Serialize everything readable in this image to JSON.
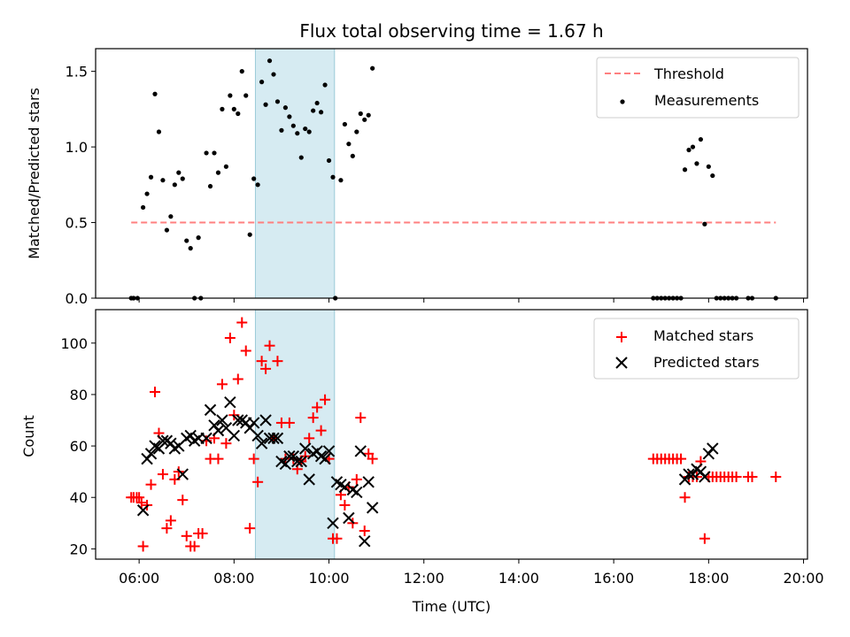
{
  "chart_data": [
    {
      "type": "scatter",
      "title": "Flux total observing time = 1.67 h",
      "xlabel": "",
      "ylabel": "Matched/Predicted stars",
      "xlim": [
        "05:05",
        "20:05"
      ],
      "ylim": [
        0,
        1.65
      ],
      "yticks": [
        "0.0",
        "0.5",
        "1.0",
        "1.5"
      ],
      "highlight_span": [
        "08:27",
        "10:07"
      ],
      "legend_position": "top-right",
      "threshold": {
        "name": "Threshold",
        "value": 0.5,
        "x": [
          "05:50",
          "19:25"
        ],
        "color": "#ff7f7f"
      },
      "series": [
        {
          "name": "Measurements",
          "color": "#000000",
          "points": [
            [
              "05:50",
              0
            ],
            [
              "05:53",
              0
            ],
            [
              "05:58",
              0
            ],
            [
              "06:05",
              0.6
            ],
            [
              "06:10",
              0.69
            ],
            [
              "06:15",
              0.8
            ],
            [
              "06:20",
              1.35
            ],
            [
              "06:25",
              1.1
            ],
            [
              "06:30",
              0.78
            ],
            [
              "06:35",
              0.45
            ],
            [
              "06:40",
              0.54
            ],
            [
              "06:45",
              0.75
            ],
            [
              "06:50",
              0.83
            ],
            [
              "06:55",
              0.79
            ],
            [
              "07:00",
              0.38
            ],
            [
              "07:05",
              0.33
            ],
            [
              "07:10",
              0
            ],
            [
              "07:15",
              0.4
            ],
            [
              "07:18",
              0
            ],
            [
              "07:25",
              0.96
            ],
            [
              "07:30",
              0.74
            ],
            [
              "07:35",
              0.96
            ],
            [
              "07:40",
              0.83
            ],
            [
              "07:45",
              1.25
            ],
            [
              "07:50",
              0.87
            ],
            [
              "07:55",
              1.34
            ],
            [
              "08:00",
              1.25
            ],
            [
              "08:05",
              1.22
            ],
            [
              "08:10",
              1.5
            ],
            [
              "08:15",
              1.34
            ],
            [
              "08:20",
              0.42
            ],
            [
              "08:25",
              0.79
            ],
            [
              "08:30",
              0.75
            ],
            [
              "08:35",
              1.43
            ],
            [
              "08:40",
              1.28
            ],
            [
              "08:45",
              1.57
            ],
            [
              "08:50",
              1.48
            ],
            [
              "08:55",
              1.3
            ],
            [
              "09:00",
              1.11
            ],
            [
              "09:05",
              1.26
            ],
            [
              "09:10",
              1.2
            ],
            [
              "09:15",
              1.14
            ],
            [
              "09:20",
              1.09
            ],
            [
              "09:25",
              0.93
            ],
            [
              "09:30",
              1.12
            ],
            [
              "09:35",
              1.1
            ],
            [
              "09:40",
              1.24
            ],
            [
              "09:45",
              1.29
            ],
            [
              "09:50",
              1.23
            ],
            [
              "09:55",
              1.41
            ],
            [
              "10:00",
              0.91
            ],
            [
              "10:05",
              0.8
            ],
            [
              "10:08",
              0
            ],
            [
              "10:15",
              0.78
            ],
            [
              "10:20",
              1.15
            ],
            [
              "10:25",
              1.02
            ],
            [
              "10:30",
              0.94
            ],
            [
              "10:35",
              1.1
            ],
            [
              "10:40",
              1.22
            ],
            [
              "10:45",
              1.18
            ],
            [
              "10:50",
              1.21
            ],
            [
              "10:55",
              1.52
            ],
            [
              "16:50",
              0
            ],
            [
              "16:55",
              0
            ],
            [
              "17:00",
              0
            ],
            [
              "17:05",
              0
            ],
            [
              "17:10",
              0
            ],
            [
              "17:15",
              0
            ],
            [
              "17:20",
              0
            ],
            [
              "17:25",
              0
            ],
            [
              "17:30",
              0.85
            ],
            [
              "17:35",
              0.98
            ],
            [
              "17:40",
              1.0
            ],
            [
              "17:45",
              0.89
            ],
            [
              "17:50",
              1.05
            ],
            [
              "17:55",
              0.49
            ],
            [
              "18:00",
              0.87
            ],
            [
              "18:05",
              0.81
            ],
            [
              "18:10",
              0
            ],
            [
              "18:15",
              0
            ],
            [
              "18:20",
              0
            ],
            [
              "18:25",
              0
            ],
            [
              "18:30",
              0
            ],
            [
              "18:35",
              0
            ],
            [
              "18:50",
              0
            ],
            [
              "18:55",
              0
            ],
            [
              "19:25",
              0
            ]
          ]
        }
      ]
    },
    {
      "type": "scatter",
      "title": "",
      "xlabel": "Time (UTC)",
      "ylabel": "Count",
      "xlim": [
        "05:05",
        "20:05"
      ],
      "ylim": [
        16,
        113
      ],
      "xticks": [
        "06:00",
        "08:00",
        "10:00",
        "12:00",
        "14:00",
        "16:00",
        "18:00",
        "20:00"
      ],
      "yticks": [
        20,
        40,
        60,
        80,
        100
      ],
      "highlight_span": [
        "08:27",
        "10:07"
      ],
      "legend_position": "top-right",
      "series": [
        {
          "name": "Matched stars",
          "marker": "plus",
          "color": "#ff0000",
          "points": [
            [
              "05:50",
              40
            ],
            [
              "05:53",
              40
            ],
            [
              "05:57",
              40
            ],
            [
              "06:00",
              40
            ],
            [
              "06:03",
              38
            ],
            [
              "06:05",
              21
            ],
            [
              "06:10",
              37
            ],
            [
              "06:15",
              45
            ],
            [
              "06:20",
              81
            ],
            [
              "06:25",
              65
            ],
            [
              "06:30",
              49
            ],
            [
              "06:35",
              28
            ],
            [
              "06:40",
              31
            ],
            [
              "06:45",
              47
            ],
            [
              "06:50",
              50
            ],
            [
              "06:55",
              39
            ],
            [
              "07:00",
              25
            ],
            [
              "07:05",
              21
            ],
            [
              "07:10",
              21
            ],
            [
              "07:15",
              26
            ],
            [
              "07:20",
              26
            ],
            [
              "07:25",
              62
            ],
            [
              "07:30",
              55
            ],
            [
              "07:35",
              63
            ],
            [
              "07:40",
              55
            ],
            [
              "07:45",
              84
            ],
            [
              "07:50",
              61
            ],
            [
              "07:55",
              102
            ],
            [
              "08:00",
              72
            ],
            [
              "08:05",
              86
            ],
            [
              "08:10",
              108
            ],
            [
              "08:15",
              97
            ],
            [
              "08:20",
              28
            ],
            [
              "08:25",
              55
            ],
            [
              "08:30",
              46
            ],
            [
              "08:35",
              93
            ],
            [
              "08:40",
              90
            ],
            [
              "08:45",
              99
            ],
            [
              "08:50",
              63
            ],
            [
              "08:55",
              93
            ],
            [
              "09:00",
              69
            ],
            [
              "09:05",
              55
            ],
            [
              "09:10",
              69
            ],
            [
              "09:15",
              55
            ],
            [
              "09:20",
              51
            ],
            [
              "09:25",
              54
            ],
            [
              "09:30",
              56
            ],
            [
              "09:35",
              63
            ],
            [
              "09:40",
              71
            ],
            [
              "09:45",
              75
            ],
            [
              "09:50",
              66
            ],
            [
              "09:55",
              78
            ],
            [
              "10:00",
              55
            ],
            [
              "10:05",
              24
            ],
            [
              "10:10",
              24
            ],
            [
              "10:15",
              41
            ],
            [
              "10:20",
              37
            ],
            [
              "10:25",
              44
            ],
            [
              "10:30",
              30
            ],
            [
              "10:35",
              47
            ],
            [
              "10:40",
              71
            ],
            [
              "10:45",
              27
            ],
            [
              "10:50",
              57
            ],
            [
              "10:55",
              55
            ],
            [
              "16:50",
              55
            ],
            [
              "16:55",
              55
            ],
            [
              "17:00",
              55
            ],
            [
              "17:05",
              55
            ],
            [
              "17:10",
              55
            ],
            [
              "17:15",
              55
            ],
            [
              "17:20",
              55
            ],
            [
              "17:25",
              55
            ],
            [
              "17:30",
              40
            ],
            [
              "17:35",
              48
            ],
            [
              "17:40",
              48
            ],
            [
              "17:45",
              48
            ],
            [
              "17:50",
              54
            ],
            [
              "17:55",
              24
            ],
            [
              "18:00",
              48
            ],
            [
              "18:05",
              48
            ],
            [
              "18:10",
              48
            ],
            [
              "18:15",
              48
            ],
            [
              "18:20",
              48
            ],
            [
              "18:25",
              48
            ],
            [
              "18:30",
              48
            ],
            [
              "18:35",
              48
            ],
            [
              "18:50",
              48
            ],
            [
              "18:55",
              48
            ],
            [
              "19:25",
              48
            ]
          ]
        },
        {
          "name": "Predicted stars",
          "marker": "x",
          "color": "#000000",
          "points": [
            [
              "06:05",
              35
            ],
            [
              "06:10",
              55
            ],
            [
              "06:15",
              57
            ],
            [
              "06:20",
              60
            ],
            [
              "06:25",
              59
            ],
            [
              "06:30",
              62
            ],
            [
              "06:35",
              62
            ],
            [
              "06:40",
              61
            ],
            [
              "06:45",
              59
            ],
            [
              "06:50",
              60
            ],
            [
              "06:55",
              49
            ],
            [
              "07:00",
              63
            ],
            [
              "07:05",
              64
            ],
            [
              "07:10",
              62
            ],
            [
              "07:15",
              63
            ],
            [
              "07:25",
              63
            ],
            [
              "07:30",
              74
            ],
            [
              "07:35",
              68
            ],
            [
              "07:40",
              66
            ],
            [
              "07:45",
              70
            ],
            [
              "07:50",
              67
            ],
            [
              "07:55",
              77
            ],
            [
              "08:00",
              64
            ],
            [
              "08:05",
              70
            ],
            [
              "08:10",
              70
            ],
            [
              "08:15",
              69
            ],
            [
              "08:20",
              67
            ],
            [
              "08:25",
              69
            ],
            [
              "08:30",
              64
            ],
            [
              "08:35",
              61
            ],
            [
              "08:40",
              70
            ],
            [
              "08:45",
              63
            ],
            [
              "08:50",
              63
            ],
            [
              "08:55",
              63
            ],
            [
              "09:00",
              54
            ],
            [
              "09:05",
              53
            ],
            [
              "09:10",
              56
            ],
            [
              "09:15",
              56
            ],
            [
              "09:20",
              54
            ],
            [
              "09:25",
              54
            ],
            [
              "09:30",
              59
            ],
            [
              "09:35",
              47
            ],
            [
              "09:40",
              57
            ],
            [
              "09:45",
              58
            ],
            [
              "09:50",
              56
            ],
            [
              "09:55",
              55
            ],
            [
              "10:00",
              58
            ],
            [
              "10:05",
              30
            ],
            [
              "10:10",
              46
            ],
            [
              "10:15",
              45
            ],
            [
              "10:20",
              44
            ],
            [
              "10:25",
              32
            ],
            [
              "10:30",
              43
            ],
            [
              "10:35",
              42
            ],
            [
              "10:40",
              58
            ],
            [
              "10:45",
              23
            ],
            [
              "10:50",
              46
            ],
            [
              "10:55",
              36
            ],
            [
              "17:30",
              47
            ],
            [
              "17:35",
              49
            ],
            [
              "17:40",
              49
            ],
            [
              "17:45",
              51
            ],
            [
              "17:50",
              50
            ],
            [
              "17:55",
              48
            ],
            [
              "18:00",
              57
            ],
            [
              "18:05",
              59
            ]
          ]
        }
      ]
    }
  ]
}
